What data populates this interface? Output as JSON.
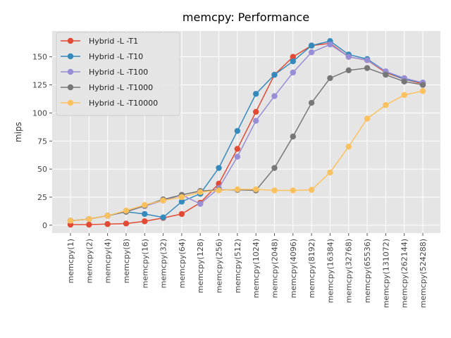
{
  "chart_data": {
    "type": "line",
    "title": "memcpy: Performance",
    "xlabel": "",
    "ylabel": "mips",
    "ylim": [
      -7,
      173
    ],
    "yticks": [
      0,
      25,
      50,
      75,
      100,
      125,
      150
    ],
    "grid": true,
    "legend_position": "top-left",
    "categories": [
      "memcpy(1)",
      "memcpy(2)",
      "memcpy(4)",
      "memcpy(8)",
      "memcpy(16)",
      "memcpy(32)",
      "memcpy(64)",
      "memcpy(128)",
      "memcpy(256)",
      "memcpy(512)",
      "memcpy(1024)",
      "memcpy(2048)",
      "memcpy(4096)",
      "memcpy(8192)",
      "memcpy(16384)",
      "memcpy(32768)",
      "memcpy(65536)",
      "memcpy(131072)",
      "memcpy(262144)",
      "memcpy(524288)"
    ],
    "series": [
      {
        "name": "Hybrid -L -T1",
        "color": "#E24A33",
        "values": [
          0.5,
          0.5,
          1,
          1.5,
          3.5,
          6.5,
          10,
          20,
          37,
          68,
          101,
          134,
          150,
          160,
          162,
          150,
          147,
          136,
          130,
          126
        ]
      },
      {
        "name": "Hybrid -L -T10",
        "color": "#348ABD",
        "values": [
          4,
          5.5,
          8.5,
          12,
          10,
          7,
          21,
          28,
          51,
          84,
          117,
          134,
          146,
          160,
          164,
          152,
          148,
          137,
          130,
          127
        ]
      },
      {
        "name": "Hybrid -L -T100",
        "color": "#988ED5",
        "values": [
          4,
          5.5,
          8.5,
          12,
          17,
          22,
          27,
          19,
          33,
          61,
          93,
          115,
          136,
          154,
          161,
          150,
          147,
          137,
          131,
          127
        ]
      },
      {
        "name": "Hybrid -L -T1000",
        "color": "#777777",
        "values": [
          4,
          5.5,
          8.5,
          12,
          17.5,
          23,
          27,
          30.5,
          31.5,
          31.5,
          31,
          51,
          79,
          109,
          131,
          138,
          140,
          134,
          128,
          125
        ]
      },
      {
        "name": "Hybrid -L -T10000",
        "color": "#FBC15E",
        "values": [
          4,
          5.5,
          8.5,
          13,
          18,
          22,
          25,
          29.5,
          31,
          32,
          32,
          31,
          31,
          31.5,
          47,
          70,
          95,
          107,
          116,
          119.5
        ]
      }
    ]
  }
}
